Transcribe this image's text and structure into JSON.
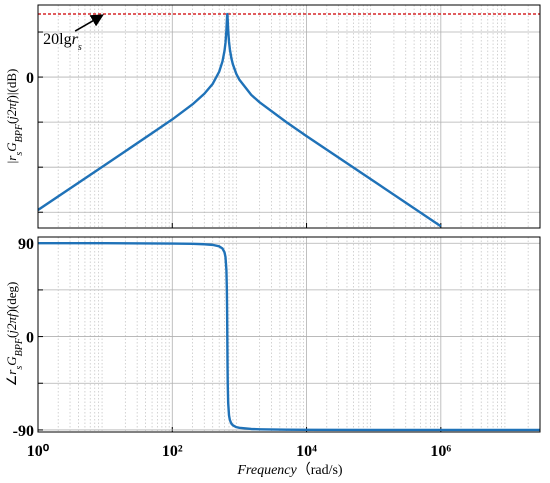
{
  "chart_data": [
    {
      "type": "line",
      "log_x": true,
      "grid": true,
      "color": "#1f72b8",
      "ylabel": [
        "|",
        "r",
        "s",
        "G",
        "BPF",
        "(",
        "j2πf",
        ")|(dB)"
      ],
      "xlim": [
        1,
        30000000
      ],
      "ylim": [
        -67,
        32
      ],
      "xticks": [
        {
          "value": 1,
          "label": null
        },
        {
          "value": 100,
          "label": null
        },
        {
          "value": 10000,
          "label": null
        },
        {
          "value": 1000000,
          "label": null
        }
      ],
      "yticks": [
        {
          "value": 20,
          "label": null
        },
        0,
        {
          "value": -20,
          "label": null
        },
        {
          "value": -40,
          "label": null
        },
        {
          "value": -60,
          "label": null
        }
      ],
      "reference_line": {
        "value": 28,
        "color": "#d62728"
      },
      "annotation": {
        "text": "20lg",
        "symbol": "r",
        "subscript": "s",
        "x": 10
      },
      "x": [
        1,
        10,
        100,
        200,
        300,
        400,
        500,
        560,
        600,
        620,
        640,
        650,
        655,
        660,
        665,
        670,
        680,
        700,
        720,
        760,
        800,
        900,
        1000,
        1500,
        2000,
        5000,
        10000,
        100000,
        1000000
      ],
      "values": [
        -59.0,
        -39.0,
        -18.8,
        -12.1,
        -7.4,
        -3.0,
        2.4,
        7.0,
        11.7,
        15.2,
        20.7,
        24.8,
        27.0,
        28.0,
        27.0,
        24.9,
        20.9,
        15.7,
        12.4,
        8.3,
        5.6,
        1.4,
        -1.2,
        -7.9,
        -11.2,
        -20.0,
        -26.2,
        -46.2,
        -66.2
      ]
    },
    {
      "type": "line",
      "log_x": true,
      "grid": true,
      "color": "#1f72b8",
      "ylabel": [
        "∠",
        "r",
        "s",
        "G",
        "BPF",
        "(",
        "j2πf",
        ")(deg)"
      ],
      "xlabel": [
        "Frequency",
        "（rad/s)"
      ],
      "xlim": [
        1,
        30000000
      ],
      "ylim": [
        -92,
        96
      ],
      "xticks": [
        {
          "value": 1,
          "label": "10⁰"
        },
        {
          "value": 100,
          "label": "10²"
        },
        {
          "value": 10000,
          "label": "10⁴"
        },
        {
          "value": 1000000,
          "label": "10⁶"
        }
      ],
      "yticks": [
        90,
        {
          "value": 45,
          "label": null
        },
        0,
        {
          "value": -45,
          "label": null
        },
        -90
      ],
      "x": [
        1,
        10,
        100,
        200,
        300,
        400,
        500,
        560,
        600,
        620,
        640,
        650,
        655,
        660,
        665,
        670,
        680,
        700,
        720,
        760,
        800,
        900,
        1000,
        1500,
        2000,
        5000,
        10000,
        100000,
        1000000,
        30000000
      ],
      "values": [
        90.0,
        90.0,
        89.7,
        89.4,
        89.0,
        88.4,
        87.0,
        84.9,
        81.2,
        76.7,
        64.4,
        46.0,
        27.3,
        0,
        -27.1,
        -45.6,
        -63.7,
        -75.9,
        -80.4,
        -84.0,
        -85.6,
        -87.3,
        -88.0,
        -89.1,
        -89.4,
        -89.8,
        -89.9,
        -90.0,
        -90.0,
        -90.0
      ]
    }
  ]
}
